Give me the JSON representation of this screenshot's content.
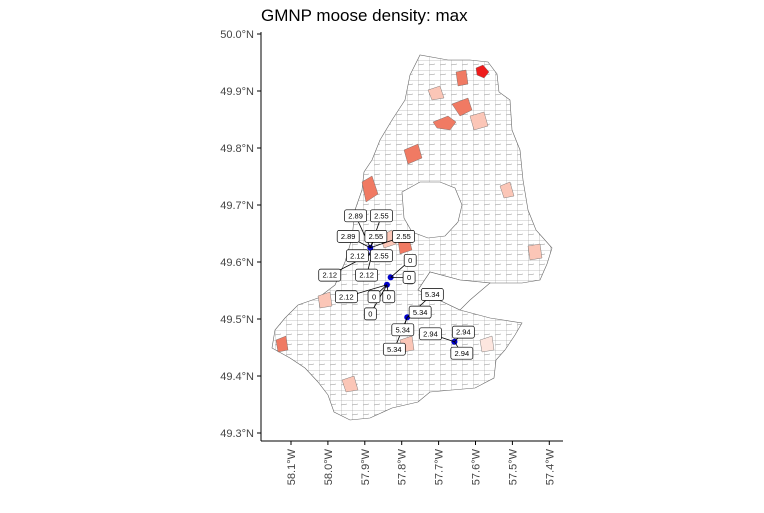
{
  "title": "GMNP moose density: max",
  "colors": {
    "background": "#ffffff",
    "boundary": "#808080",
    "fill_high": "#ee1c1c",
    "fill_mid": "#f07a63",
    "fill_low": "#fbc6b7",
    "fill_faint": "#fde6df",
    "point": "#0000cc",
    "leader": "#000000"
  },
  "axes": {
    "y_ticks": [
      "49.3°N",
      "49.4°N",
      "49.5°N",
      "49.6°N",
      "49.7°N",
      "49.8°N",
      "49.9°N",
      "50.0°N"
    ],
    "x_ticks": [
      "58.1°W",
      "58.0°W",
      "57.9°W",
      "57.8°W",
      "57.7°W",
      "57.6°W",
      "57.5°W",
      "57.4°W"
    ],
    "y_range": [
      49.28,
      50.0
    ],
    "x_range": [
      -58.18,
      -57.38
    ]
  },
  "chart_data": {
    "type": "map",
    "title": "GMNP moose density: max",
    "xlabel": "",
    "ylabel": "",
    "ylim": [
      49.28,
      50.0
    ],
    "xlim": [
      -58.18,
      -57.38
    ],
    "points": [
      {
        "lon": -57.885,
        "lat": 49.625
      },
      {
        "lon": -57.88,
        "lat": 49.615
      },
      {
        "lon": -57.83,
        "lat": 49.573
      },
      {
        "lon": -57.84,
        "lat": 49.56
      },
      {
        "lon": -57.785,
        "lat": 49.503
      },
      {
        "lon": -57.657,
        "lat": 49.46
      }
    ],
    "labels": [
      {
        "text": "2.89",
        "lon": -57.925,
        "lat": 49.681
      },
      {
        "text": "2.55",
        "lon": -57.855,
        "lat": 49.681
      },
      {
        "text": "2.89",
        "lon": -57.945,
        "lat": 49.645
      },
      {
        "text": "2.55",
        "lon": -57.87,
        "lat": 49.645
      },
      {
        "text": "2.55",
        "lon": -57.795,
        "lat": 49.645
      },
      {
        "text": "2.12",
        "lon": -57.92,
        "lat": 49.611
      },
      {
        "text": "2.55",
        "lon": -57.855,
        "lat": 49.611
      },
      {
        "text": "0",
        "lon": -57.777,
        "lat": 49.603
      },
      {
        "text": "2.12",
        "lon": -57.995,
        "lat": 49.577
      },
      {
        "text": "2.12",
        "lon": -57.895,
        "lat": 49.577
      },
      {
        "text": "0",
        "lon": -57.78,
        "lat": 49.573
      },
      {
        "text": "5.34",
        "lon": -57.717,
        "lat": 49.543
      },
      {
        "text": "2.12",
        "lon": -57.95,
        "lat": 49.539
      },
      {
        "text": "0",
        "lon": -57.875,
        "lat": 49.539
      },
      {
        "text": "0",
        "lon": -57.835,
        "lat": 49.539
      },
      {
        "text": "5.34",
        "lon": -57.75,
        "lat": 49.512
      },
      {
        "text": "0",
        "lon": -57.885,
        "lat": 49.509
      },
      {
        "text": "5.34",
        "lon": -57.797,
        "lat": 49.481
      },
      {
        "text": "2.94",
        "lon": -57.722,
        "lat": 49.474
      },
      {
        "text": "2.94",
        "lon": -57.633,
        "lat": 49.477
      },
      {
        "text": "5.34",
        "lon": -57.82,
        "lat": 49.447
      },
      {
        "text": "2.94",
        "lon": -57.637,
        "lat": 49.44
      }
    ],
    "grid": false
  }
}
